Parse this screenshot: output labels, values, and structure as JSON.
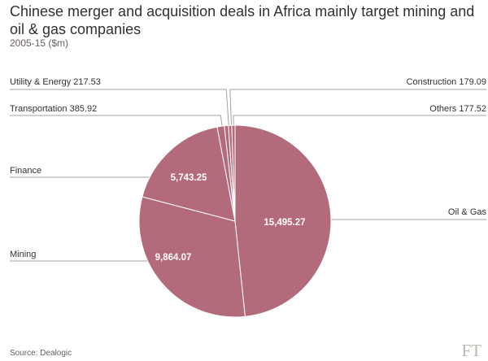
{
  "title": "Chinese merger and acquisition deals in Africa mainly target mining and oil & gas companies",
  "subtitle": "2005-15 ($m)",
  "source": "Source: Dealogic",
  "logo": "FT",
  "colors": {
    "slice": "#b36b7c",
    "slice_stroke": "#ffffff",
    "leader": "#a7a19c",
    "text": "#33302e"
  },
  "chart_data": {
    "type": "pie",
    "start_angle_deg": 0,
    "direction": "clockwise",
    "slices": [
      {
        "label": "Oil & Gas",
        "value": 15495.27,
        "value_text": "15,495.27"
      },
      {
        "label": "Mining",
        "value": 9864.07,
        "value_text": "9,864.07"
      },
      {
        "label": "Finance",
        "value": 5743.25,
        "value_text": "5,743.25"
      },
      {
        "label": "Transportation",
        "value": 385.92,
        "value_text": "385.92"
      },
      {
        "label": "Utility & Energy",
        "value": 217.53,
        "value_text": "217.53"
      },
      {
        "label": "Construction",
        "value": 179.09,
        "value_text": "179.09"
      },
      {
        "label": "Others",
        "value": 177.52,
        "value_text": "177.52"
      }
    ]
  }
}
